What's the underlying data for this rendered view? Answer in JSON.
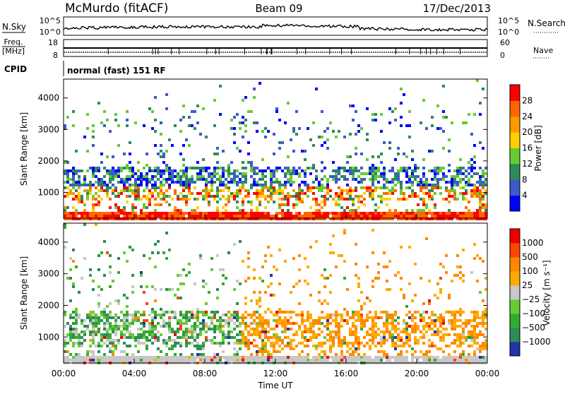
{
  "header": {
    "station": "McMurdo (fitACF)",
    "beam": "Beam 09",
    "date": "17/Dec/2013"
  },
  "noise_panel": {
    "left_label": "N.Sky",
    "left_ticks": [
      "10^5",
      "10^0"
    ],
    "right_label": "N.Search",
    "right_ticks": [
      "10^5",
      "10^0"
    ],
    "right_style": "dotted"
  },
  "freq_panel": {
    "left_label_line1": "Freq.",
    "left_label_line2": "[MHz]",
    "left_ticks": [
      "18",
      "8"
    ],
    "right_label": "Nave",
    "right_ticks": [
      "60",
      "0"
    ],
    "right_style": "dotted"
  },
  "cpid_panel": {
    "label": "CPID",
    "value": "normal (fast) 151 RF"
  },
  "chart_data": [
    {
      "type": "heatmap",
      "title": "",
      "parameter": "Power",
      "ylabel": "Slant Range [km]",
      "xlabel": "",
      "ylim": [
        180,
        4600
      ],
      "yticks": [
        1000,
        2000,
        3000,
        4000
      ],
      "colorbar": {
        "label": "Power [dB]",
        "tick_labels": [
          "4",
          "8",
          "12",
          "16",
          "20",
          "24",
          "28"
        ],
        "colors": [
          "#0000ff",
          "#3b5bcc",
          "#2e8b57",
          "#66cc33",
          "#ffd000",
          "#ff9900",
          "#ff6600",
          "#ff0000"
        ]
      }
    },
    {
      "type": "heatmap",
      "title": "",
      "parameter": "Velocity",
      "ylabel": "Slant Range [km]",
      "xlabel": "Time UT",
      "ylim": [
        180,
        4600
      ],
      "yticks": [
        1000,
        2000,
        3000,
        4000
      ],
      "xticks": [
        "00:00",
        "04:00",
        "08:00",
        "12:00",
        "16:00",
        "20:00",
        "00:00"
      ],
      "colorbar": {
        "label": "Velocity [m s⁻¹]",
        "tick_labels": [
          "1000",
          "500",
          "100",
          "25",
          "−25",
          "−100",
          "−500",
          "−1000"
        ],
        "colors": [
          "#2233aa",
          "#2e8b57",
          "#33aa33",
          "#66cc33",
          "#c8c8c8",
          "#ffaa00",
          "#ff8800",
          "#ff4400",
          "#ee0000"
        ]
      }
    }
  ]
}
